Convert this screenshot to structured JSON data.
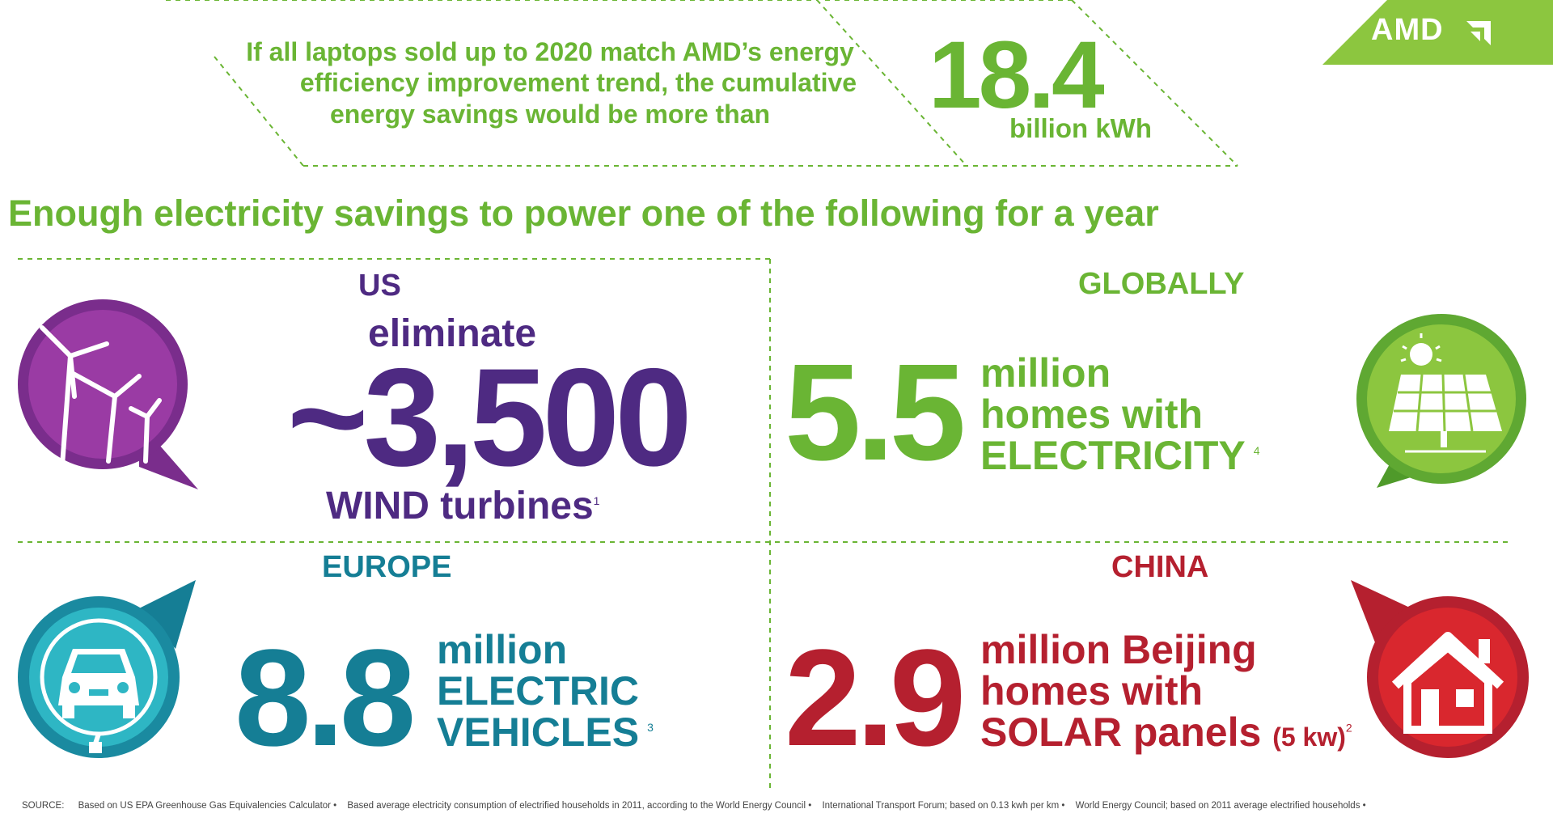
{
  "brand": {
    "name": "AMD",
    "color": "#6ab534"
  },
  "header": {
    "statement": [
      "If all laptops sold up to 2020 match AMD’s energy",
      "efficiency improvement trend, the cumulative",
      "energy  savings would be more than"
    ],
    "value": "18.4",
    "unit": "billion kWh"
  },
  "headline": "Enough electricity savings to power one of the following for a year",
  "us": {
    "region": "US",
    "verb": "eliminate",
    "value": "~3,500",
    "desc": "WIND turbines",
    "note": "1",
    "icon": "wind-turbine-icon",
    "color": "#4e2a82"
  },
  "globally": {
    "region": "GLOBALLY",
    "value": "5.5",
    "desc": [
      "million",
      "homes with",
      "ELECTRICITY"
    ],
    "note": "4",
    "icon": "solar-panel-icon",
    "color": "#6ab534"
  },
  "europe": {
    "region": "EUROPE",
    "value": "8.8",
    "desc": [
      "million",
      "ELECTRIC",
      "VEHICLES"
    ],
    "note": "3",
    "icon": "electric-car-icon",
    "color": "#157e95"
  },
  "china": {
    "region": "CHINA",
    "value": "2.9",
    "desc": [
      "million Beijing",
      "homes with",
      "SOLAR panels"
    ],
    "desc_unit": "(5 kw)",
    "note": "2",
    "icon": "house-icon",
    "color": "#b5202f"
  },
  "source": {
    "label": "SOURCE:",
    "items": [
      "Based on US EPA Greenhouse Gas Equivalencies Calculator •",
      "Based average electricity consumption of electrified households in 2011, according to the World Energy Council •",
      "International Transport Forum; based on 0.13 kwh per km •",
      "World Energy Council; based on 2011 average electrified households •"
    ]
  }
}
